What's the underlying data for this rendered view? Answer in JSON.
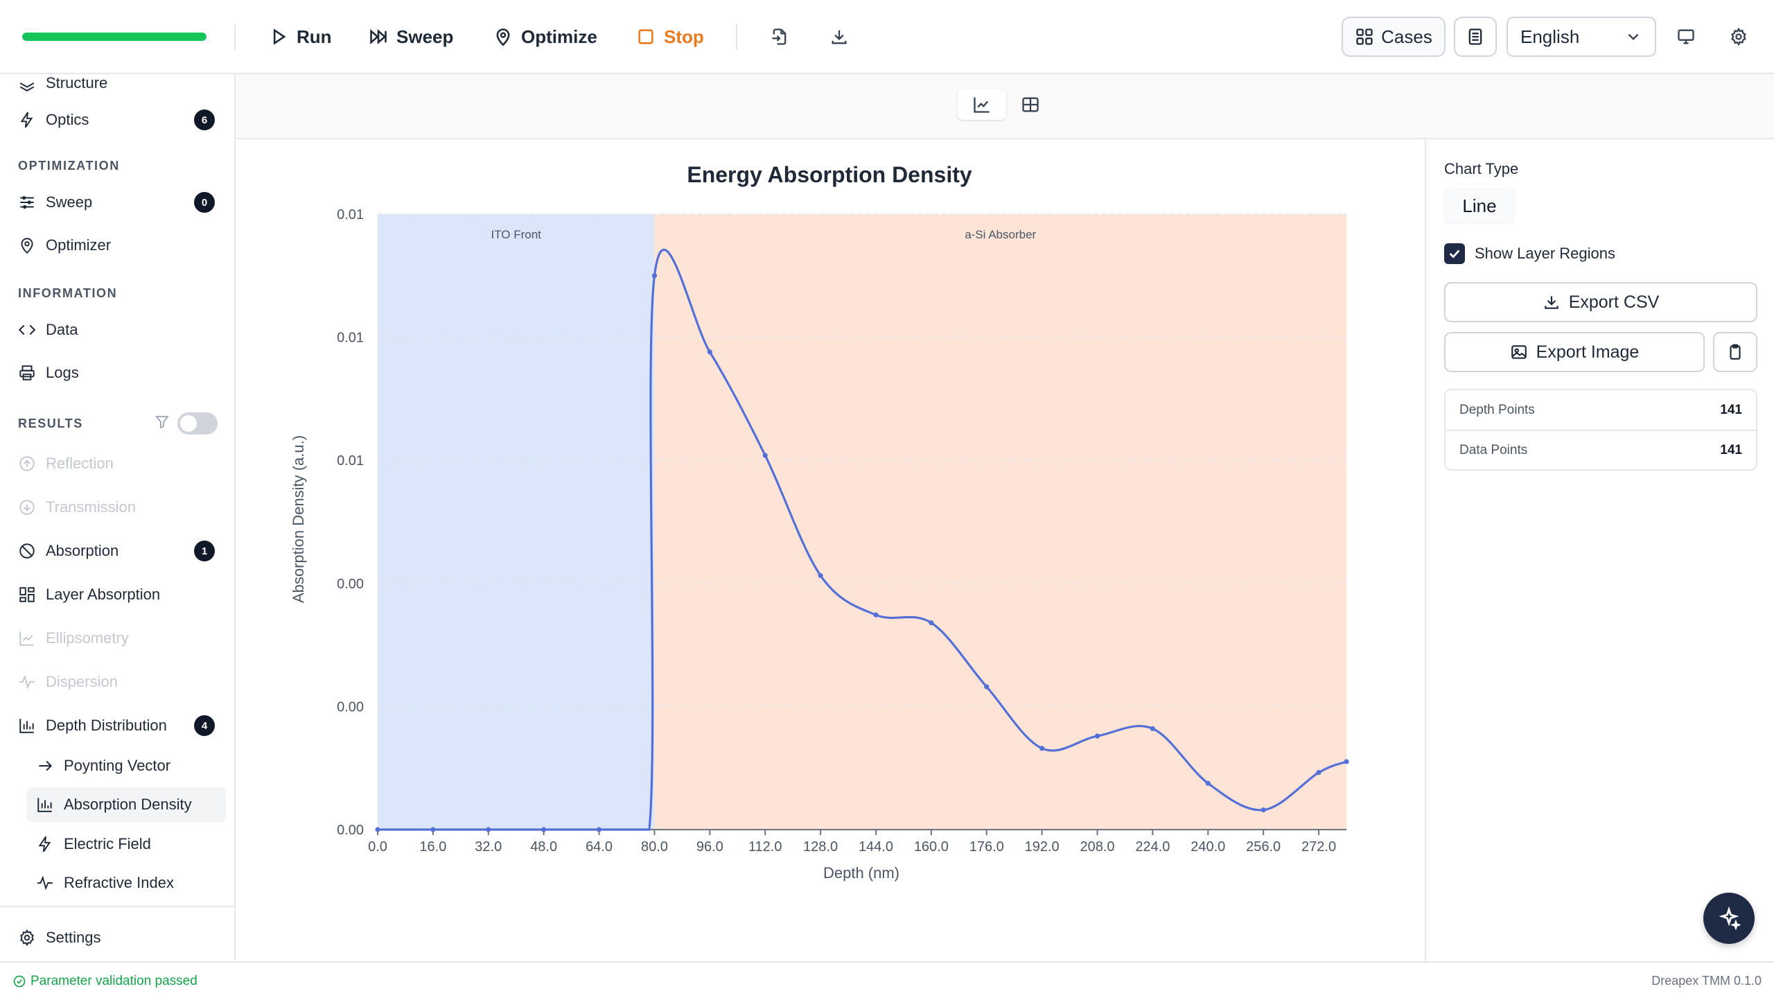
{
  "toolbar": {
    "progress_percent": 100,
    "run_label": "Run",
    "sweep_label": "Sweep",
    "optimize_label": "Optimize",
    "stop_label": "Stop",
    "cases_label": "Cases",
    "language": "English"
  },
  "sidebar": {
    "structure": "Structure",
    "optics": "Optics",
    "optics_badge": "6",
    "section_optimization": "OPTIMIZATION",
    "sweep": "Sweep",
    "sweep_badge": "0",
    "optimizer": "Optimizer",
    "section_information": "INFORMATION",
    "data": "Data",
    "logs": "Logs",
    "section_results": "RESULTS",
    "reflection": "Reflection",
    "transmission": "Transmission",
    "absorption": "Absorption",
    "absorption_badge": "1",
    "layer_absorption": "Layer Absorption",
    "ellipsometry": "Ellipsometry",
    "dispersion": "Dispersion",
    "depth_distribution": "Depth Distribution",
    "depth_badge": "4",
    "poynting_vector": "Poynting Vector",
    "absorption_density": "Absorption Density",
    "electric_field": "Electric Field",
    "refractive_index": "Refractive Index",
    "settings": "Settings"
  },
  "panel": {
    "chart_type_label": "Chart Type",
    "chart_type_value": "Line",
    "show_layer_regions": "Show Layer Regions",
    "export_csv": "Export CSV",
    "export_image": "Export Image",
    "depth_points_label": "Depth Points",
    "depth_points_value": "141",
    "data_points_label": "Data Points",
    "data_points_value": "141"
  },
  "status": {
    "message": "Parameter validation passed",
    "version": "Dreapex TMM 0.1.0"
  },
  "chart_data": {
    "type": "line",
    "title": "Energy Absorption Density",
    "xlabel": "Depth (nm)",
    "ylabel": "Absorption Density (a.u.)",
    "xlim": [
      0,
      280
    ],
    "ylim": [
      0,
      0.0125
    ],
    "y_tick_labels": [
      "0.00",
      "0.00",
      "0.00",
      "0.01",
      "0.01",
      "0.01"
    ],
    "x_ticks": [
      0,
      16,
      32,
      48,
      64,
      80,
      96,
      112,
      128,
      144,
      160,
      176,
      192,
      208,
      224,
      240,
      256,
      272
    ],
    "regions": [
      {
        "name": "ITO Front",
        "start": 0,
        "end": 80,
        "color": "#dbe6fb"
      },
      {
        "name": "a-Si Absorber",
        "start": 80,
        "end": 280,
        "color": "#fde4d6"
      }
    ],
    "series": [
      {
        "color": "#5470d6",
        "points": [
          [
            0,
            0
          ],
          [
            16,
            0
          ],
          [
            32,
            0
          ],
          [
            48,
            0
          ],
          [
            64,
            0
          ],
          [
            78.5,
            0
          ],
          [
            80,
            0.01125
          ],
          [
            96,
            0.0097
          ],
          [
            112,
            0.0076
          ],
          [
            128,
            0.00516
          ],
          [
            144,
            0.00436
          ],
          [
            160,
            0.0042
          ],
          [
            176,
            0.0029
          ],
          [
            192,
            0.00165
          ],
          [
            208,
            0.0019
          ],
          [
            224,
            0.00205
          ],
          [
            240,
            0.00094
          ],
          [
            256,
            0.0004
          ],
          [
            272,
            0.00116
          ],
          [
            280,
            0.00138
          ]
        ]
      }
    ]
  }
}
